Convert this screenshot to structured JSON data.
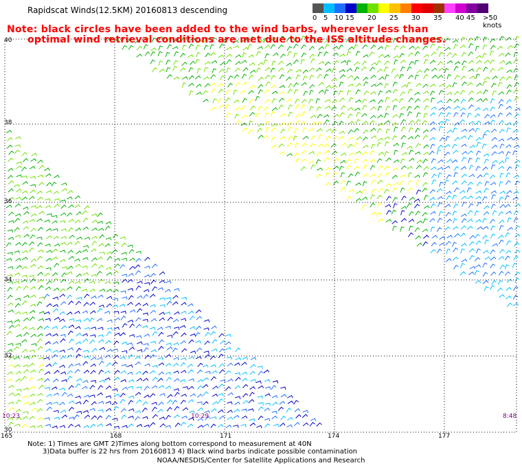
{
  "header": {
    "title": "Rapidscat Winds(12.5KM) 20160813 descending",
    "note_line1": "Note: black circles have been added to the wind barbs, wherever less than",
    "note_line2": "optimal wind retrieval conditions are met due to the ISS altitude changes."
  },
  "legend": {
    "unit": ">50 knots",
    "entries": [
      {
        "label": "0",
        "color": "#555555"
      },
      {
        "label": "5",
        "color": "#00bfff"
      },
      {
        "label": "10",
        "color": "#1e6fff"
      },
      {
        "label": "15",
        "color": "#0000c8"
      },
      {
        "label": "",
        "color": "#00b000"
      },
      {
        "label": "20",
        "color": "#70e000"
      },
      {
        "label": "",
        "color": "#ffff00"
      },
      {
        "label": "25",
        "color": "#ffc000"
      },
      {
        "label": "",
        "color": "#ff8000"
      },
      {
        "label": "30",
        "color": "#ff0000"
      },
      {
        "label": "",
        "color": "#e00000"
      },
      {
        "label": "35",
        "color": "#a03000"
      },
      {
        "label": "",
        "color": "#ff40ff"
      },
      {
        "label": "40",
        "color": "#d000d0"
      },
      {
        "label": "45",
        "color": "#8000a0"
      },
      {
        "label": "",
        "color": "#500070"
      }
    ]
  },
  "map": {
    "lat_labels": [
      "40",
      "38",
      "36",
      "34",
      "32",
      "30"
    ],
    "lon_labels": [
      "165",
      "168",
      "171",
      "174",
      "177"
    ],
    "time_labels": [
      "10:23",
      "10:29",
      "8:48"
    ],
    "time_label_color": "#800080"
  },
  "footer": {
    "line1": "Note: 1) Times are GMT 2)Times along bottom correspond to measurement at 40N",
    "line2": "3)Data buffer is 22 hrs from 20160813 4) Black wind barbs indicate possible contamination",
    "credit": "NOAA/NESDIS/Center for Satellite Applications and Research"
  }
}
